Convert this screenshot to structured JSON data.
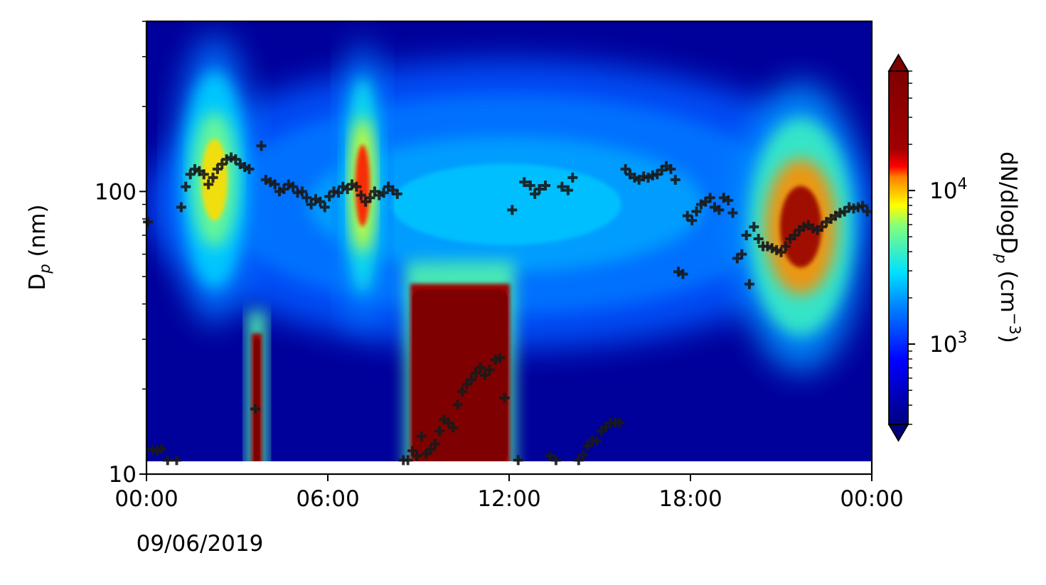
{
  "chart_data": {
    "type": "heatmap",
    "title": "",
    "xlabel": "",
    "ylabel": {
      "main": "D",
      "sub": "p",
      "unit": " (nm)"
    },
    "colorbar_label": {
      "main": "dN/dlogD",
      "sub": "p",
      "unit": " (cm",
      "sup": "−3",
      "close": ")"
    },
    "x_unit": "hours since 09/06/2019 00:00",
    "xlim": [
      0,
      24
    ],
    "ylim": [
      10,
      400
    ],
    "y_scale": "log",
    "color_scale": "log",
    "clim": [
      300,
      60000
    ],
    "colormap": "jet",
    "x_ticks": [
      {
        "value": 0,
        "label": "00:00",
        "sublabel": "09/06/2019"
      },
      {
        "value": 6,
        "label": "06:00",
        "sublabel": ""
      },
      {
        "value": 12,
        "label": "12:00",
        "sublabel": ""
      },
      {
        "value": 18,
        "label": "18:00",
        "sublabel": ""
      },
      {
        "value": 24,
        "label": "00:00",
        "sublabel": ""
      }
    ],
    "y_ticks": [
      {
        "value": 10,
        "label": "10"
      },
      {
        "value": 100,
        "label": "100"
      }
    ],
    "colorbar_ticks": [
      {
        "value": 1000,
        "base": "10",
        "exp": "3"
      },
      {
        "value": 10000,
        "base": "10",
        "exp": "4"
      }
    ],
    "heatmap_features": [
      {
        "name": "background accumulation mode",
        "t_start": 0,
        "t_end": 23.8,
        "d_center": 90,
        "peak": 2500
      },
      {
        "name": "early morning mode",
        "t_start": 0.9,
        "t_end": 3.6,
        "d_center": 110,
        "peak": 9000
      },
      {
        "name": "morning traffic mode",
        "t_start": 6.4,
        "t_end": 7.9,
        "d_center": 105,
        "peak": 14000
      },
      {
        "name": "short burst",
        "t_start": 3.55,
        "t_end": 3.75,
        "d_lo": 11,
        "d_hi": 30,
        "peak": 60000
      },
      {
        "name": "nucleation event",
        "t_start": 8.8,
        "t_end": 11.95,
        "d_lo": 11,
        "d_hi": 45,
        "peak": 60000
      },
      {
        "name": "evening mode",
        "t_start": 19.5,
        "t_end": 23.8,
        "d_center": 75,
        "peak": 25000
      }
    ],
    "mode_diameter_series": {
      "name": "",
      "marker": "+",
      "color": "#1a1a1a",
      "points": [
        [
          0.05,
          78
        ],
        [
          0.2,
          12.2
        ],
        [
          0.35,
          12.1
        ],
        [
          0.5,
          12.3
        ],
        [
          0.7,
          11.2
        ],
        [
          1.0,
          11.2
        ],
        [
          1.15,
          88
        ],
        [
          1.3,
          104
        ],
        [
          1.45,
          115
        ],
        [
          1.6,
          120
        ],
        [
          1.75,
          118
        ],
        [
          1.9,
          115
        ],
        [
          2.05,
          106
        ],
        [
          2.2,
          112
        ],
        [
          2.35,
          120
        ],
        [
          2.5,
          125
        ],
        [
          2.65,
          130
        ],
        [
          2.8,
          132
        ],
        [
          2.95,
          130
        ],
        [
          3.1,
          125
        ],
        [
          3.25,
          122
        ],
        [
          3.4,
          120
        ],
        [
          3.6,
          17
        ],
        [
          3.8,
          145
        ],
        [
          3.95,
          110
        ],
        [
          4.1,
          108
        ],
        [
          4.25,
          106
        ],
        [
          4.4,
          100
        ],
        [
          4.55,
          102
        ],
        [
          4.7,
          106
        ],
        [
          4.85,
          104
        ],
        [
          5.0,
          99
        ],
        [
          5.15,
          100
        ],
        [
          5.3,
          95
        ],
        [
          5.45,
          90
        ],
        [
          5.6,
          94
        ],
        [
          5.75,
          92
        ],
        [
          5.9,
          88
        ],
        [
          6.05,
          96
        ],
        [
          6.2,
          100
        ],
        [
          6.35,
          99
        ],
        [
          6.5,
          104
        ],
        [
          6.65,
          102
        ],
        [
          6.8,
          106
        ],
        [
          6.95,
          104
        ],
        [
          7.1,
          97
        ],
        [
          7.25,
          92
        ],
        [
          7.4,
          95
        ],
        [
          7.55,
          100
        ],
        [
          7.7,
          97
        ],
        [
          7.85,
          99
        ],
        [
          8.0,
          104
        ],
        [
          8.15,
          101
        ],
        [
          8.3,
          98
        ],
        [
          8.5,
          11.2
        ],
        [
          8.65,
          11.2
        ],
        [
          8.8,
          12.1
        ],
        [
          8.95,
          11.6
        ],
        [
          9.1,
          13.6
        ],
        [
          9.25,
          11.8
        ],
        [
          9.4,
          12.2
        ],
        [
          9.55,
          12.8
        ],
        [
          9.7,
          14.2
        ],
        [
          9.85,
          15.6
        ],
        [
          10.0,
          15.2
        ],
        [
          10.15,
          14.6
        ],
        [
          10.3,
          17.6
        ],
        [
          10.45,
          19.6
        ],
        [
          10.6,
          20.8
        ],
        [
          10.75,
          21.6
        ],
        [
          10.9,
          22.8
        ],
        [
          11.05,
          23.8
        ],
        [
          11.2,
          22.4
        ],
        [
          11.35,
          23.4
        ],
        [
          11.55,
          25.4
        ],
        [
          11.7,
          25.8
        ],
        [
          11.85,
          18.6
        ],
        [
          12.1,
          86
        ],
        [
          12.3,
          11.2
        ],
        [
          12.5,
          108
        ],
        [
          12.7,
          105
        ],
        [
          12.85,
          98
        ],
        [
          13.0,
          102
        ],
        [
          13.2,
          105
        ],
        [
          13.35,
          11.6
        ],
        [
          13.55,
          11.2
        ],
        [
          13.75,
          104
        ],
        [
          13.95,
          101
        ],
        [
          14.1,
          112
        ],
        [
          14.3,
          11.2
        ],
        [
          14.45,
          11.7
        ],
        [
          14.6,
          12.6
        ],
        [
          14.75,
          13.2
        ],
        [
          14.9,
          13.1
        ],
        [
          15.05,
          14.2
        ],
        [
          15.2,
          14.7
        ],
        [
          15.35,
          15.2
        ],
        [
          15.5,
          15.2
        ],
        [
          15.65,
          15.2
        ],
        [
          15.85,
          120
        ],
        [
          16.0,
          115
        ],
        [
          16.15,
          112
        ],
        [
          16.3,
          110
        ],
        [
          16.45,
          113
        ],
        [
          16.6,
          112
        ],
        [
          16.75,
          114
        ],
        [
          16.9,
          115
        ],
        [
          17.05,
          119
        ],
        [
          17.2,
          123
        ],
        [
          17.35,
          120
        ],
        [
          17.5,
          110
        ],
        [
          17.6,
          52
        ],
        [
          17.75,
          51
        ],
        [
          17.9,
          82
        ],
        [
          18.05,
          79
        ],
        [
          18.2,
          85
        ],
        [
          18.35,
          90
        ],
        [
          18.5,
          92
        ],
        [
          18.65,
          95
        ],
        [
          18.8,
          88
        ],
        [
          18.95,
          86
        ],
        [
          19.1,
          95
        ],
        [
          19.25,
          93
        ],
        [
          19.4,
          84
        ],
        [
          19.55,
          58
        ],
        [
          19.7,
          60
        ],
        [
          19.85,
          70
        ],
        [
          19.95,
          47
        ],
        [
          20.1,
          75
        ],
        [
          20.25,
          68
        ],
        [
          20.4,
          64
        ],
        [
          20.55,
          64
        ],
        [
          20.7,
          63
        ],
        [
          20.85,
          62
        ],
        [
          21.0,
          61
        ],
        [
          21.15,
          64
        ],
        [
          21.3,
          68
        ],
        [
          21.45,
          70
        ],
        [
          21.6,
          73
        ],
        [
          21.75,
          75
        ],
        [
          21.9,
          76
        ],
        [
          22.05,
          74
        ],
        [
          22.2,
          73
        ],
        [
          22.35,
          75
        ],
        [
          22.5,
          78
        ],
        [
          22.65,
          80
        ],
        [
          22.8,
          82
        ],
        [
          22.95,
          84
        ],
        [
          23.1,
          85
        ],
        [
          23.25,
          88
        ],
        [
          23.4,
          87
        ],
        [
          23.55,
          88
        ],
        [
          23.7,
          89
        ],
        [
          23.85,
          85
        ]
      ]
    }
  }
}
